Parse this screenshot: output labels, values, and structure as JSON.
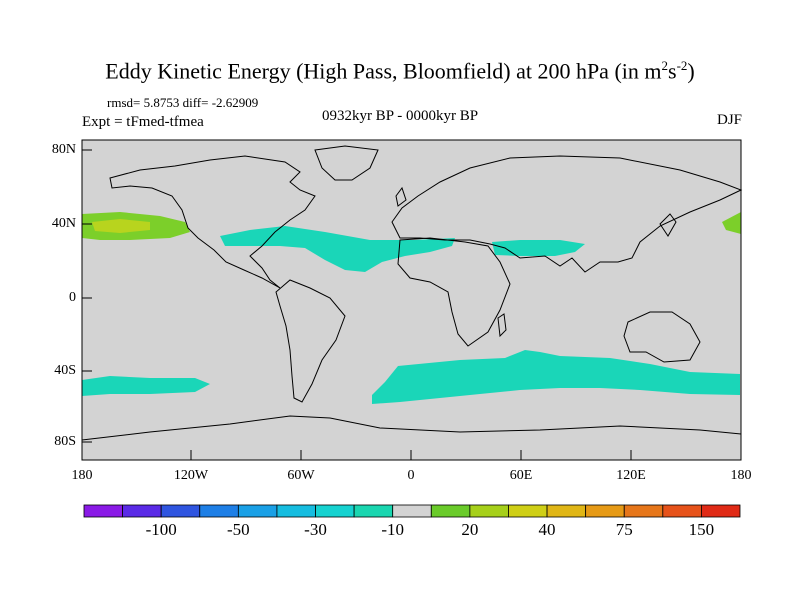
{
  "title": "Eddy Kinetic Energy (High Pass, Bloomfield) at 200 hPa (in m",
  "title_units": {
    "m_exp": "2",
    "s": "s",
    "s_exp": "-2",
    "close": ")"
  },
  "stats_text": "rmsd= 5.8753 diff= -2.62909",
  "experiment": "Expt = tFmed-tfmea",
  "period": "0932kyr BP - 0000kyr BP",
  "season": "DJF",
  "lat_labels": [
    "80N",
    "40N",
    "0",
    "40S",
    "80S"
  ],
  "lon_labels": [
    "180",
    "120W",
    "60W",
    "0",
    "60E",
    "120E",
    "180"
  ],
  "colorbar": {
    "colors": [
      "#8a1ae6",
      "#5a2ae6",
      "#2f55e0",
      "#1e7fe6",
      "#1aa0e6",
      "#16bde0",
      "#16d2d0",
      "#1ad6b0",
      "#d3d3d3",
      "#6acb2a",
      "#a6d01a",
      "#cfcf16",
      "#e0b616",
      "#e69a16",
      "#e6761a",
      "#e6521a",
      "#e02a16"
    ],
    "labels": [
      "-100",
      "-50",
      "-30",
      "-10",
      "20",
      "40",
      "75",
      "150"
    ]
  },
  "colors": {
    "background": "#d3d3d3",
    "negative_fill": "#1ad6b8",
    "positive_green": "#7ccf2a",
    "positive_yellow": "#b8d41e"
  }
}
